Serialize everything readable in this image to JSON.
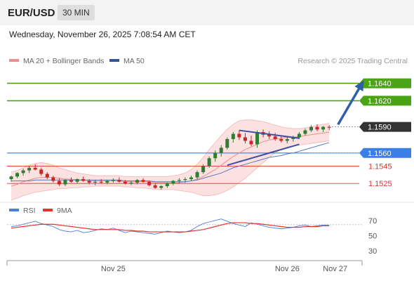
{
  "header": {
    "symbol": "EUR/USD",
    "timeframe": "30 MIN",
    "datetime": "Wednesday, November 26, 2025 7:08:54 AM CET"
  },
  "legend": {
    "items": [
      {
        "label": "MA 20 + Bollinger Bands",
        "color": "#f08c8c"
      },
      {
        "label": "MA 50",
        "color": "#2f5597"
      }
    ],
    "credit": "Research © 2025 Trading Central"
  },
  "rsi_legend": {
    "items": [
      {
        "label": "RSI",
        "color": "#4a7fd6"
      },
      {
        "label": "9MA",
        "color": "#e8312a"
      }
    ]
  },
  "colors": {
    "green_level": "#4ba316",
    "blue_level": "#3a7ee8",
    "red_level": "#e8312a",
    "current_price": "#333333",
    "arrow": "#2f5fa8",
    "candle_up": "#2e7d32",
    "candle_down": "#c62828"
  },
  "chart_data": [
    {
      "type": "line",
      "title": "",
      "price_levels": [
        {
          "value": 1.164,
          "label": "1.1640",
          "kind": "resistance",
          "color": "#4ba316"
        },
        {
          "value": 1.162,
          "label": "1.1620",
          "kind": "resistance",
          "color": "#4ba316"
        },
        {
          "value": 1.159,
          "label": "1.1590",
          "kind": "current",
          "color": "#333333"
        },
        {
          "value": 1.156,
          "label": "1.1560",
          "kind": "pivot",
          "color": "#3a7ee8"
        },
        {
          "value": 1.1545,
          "label": "1.1545",
          "kind": "support",
          "color": "#e8312a"
        },
        {
          "value": 1.1525,
          "label": "1.1525",
          "kind": "support",
          "color": "#e8312a"
        }
      ],
      "ylim": [
        1.1505,
        1.1655
      ],
      "x_ticks": [
        {
          "label": "Nov 25",
          "index": 17
        },
        {
          "label": "Nov 26",
          "index": 46
        },
        {
          "label": "Nov 27",
          "index": 54
        }
      ],
      "candles": [
        [
          1.153,
          1.1534,
          1.1527,
          1.1533
        ],
        [
          1.1533,
          1.1538,
          1.1531,
          1.1537
        ],
        [
          1.1537,
          1.1542,
          1.1534,
          1.154
        ],
        [
          1.154,
          1.1545,
          1.1537,
          1.1543
        ],
        [
          1.1543,
          1.1547,
          1.154,
          1.1541
        ],
        [
          1.1541,
          1.1543,
          1.1534,
          1.1536
        ],
        [
          1.1536,
          1.1538,
          1.153,
          1.1532
        ],
        [
          1.1532,
          1.1534,
          1.1526,
          1.1528
        ],
        [
          1.1528,
          1.1531,
          1.1522,
          1.1524
        ],
        [
          1.1524,
          1.153,
          1.1522,
          1.1529
        ],
        [
          1.1529,
          1.1532,
          1.1526,
          1.1527
        ],
        [
          1.1527,
          1.1531,
          1.1525,
          1.153
        ],
        [
          1.153,
          1.1533,
          1.1527,
          1.1528
        ],
        [
          1.1528,
          1.153,
          1.1524,
          1.1526
        ],
        [
          1.1526,
          1.1529,
          1.1523,
          1.1527
        ],
        [
          1.1527,
          1.153,
          1.1525,
          1.1526
        ],
        [
          1.1526,
          1.1529,
          1.1524,
          1.1528
        ],
        [
          1.1528,
          1.1531,
          1.1526,
          1.1529
        ],
        [
          1.1529,
          1.1532,
          1.1526,
          1.1527
        ],
        [
          1.1527,
          1.1529,
          1.1524,
          1.1525
        ],
        [
          1.1525,
          1.1528,
          1.1523,
          1.1526
        ],
        [
          1.1526,
          1.153,
          1.1524,
          1.1529
        ],
        [
          1.1529,
          1.1531,
          1.1526,
          1.1527
        ],
        [
          1.1527,
          1.1528,
          1.1522,
          1.1523
        ],
        [
          1.1523,
          1.1525,
          1.1519,
          1.152
        ],
        [
          1.152,
          1.1523,
          1.1518,
          1.1522
        ],
        [
          1.1522,
          1.1526,
          1.152,
          1.1525
        ],
        [
          1.1525,
          1.1529,
          1.1523,
          1.1528
        ],
        [
          1.1528,
          1.1531,
          1.1525,
          1.1529
        ],
        [
          1.1529,
          1.1532,
          1.1526,
          1.153
        ],
        [
          1.153,
          1.1534,
          1.1528,
          1.1532
        ],
        [
          1.1532,
          1.154,
          1.153,
          1.1538
        ],
        [
          1.1538,
          1.1547,
          1.1536,
          1.1545
        ],
        [
          1.1545,
          1.1556,
          1.1543,
          1.1554
        ],
        [
          1.1554,
          1.1563,
          1.155,
          1.156
        ],
        [
          1.156,
          1.1569,
          1.1556,
          1.1566
        ],
        [
          1.1566,
          1.1578,
          1.1564,
          1.1576
        ],
        [
          1.1576,
          1.1584,
          1.1572,
          1.1582
        ],
        [
          1.1582,
          1.1586,
          1.1575,
          1.1578
        ],
        [
          1.1578,
          1.1583,
          1.1571,
          1.1574
        ],
        [
          1.1574,
          1.158,
          1.1568,
          1.157
        ],
        [
          1.157,
          1.1586,
          1.1566,
          1.1584
        ],
        [
          1.1584,
          1.1587,
          1.1578,
          1.1581
        ],
        [
          1.1581,
          1.1585,
          1.1576,
          1.1579
        ],
        [
          1.1579,
          1.1583,
          1.1574,
          1.1576
        ],
        [
          1.1576,
          1.158,
          1.1572,
          1.1574
        ],
        [
          1.1574,
          1.1578,
          1.1571,
          1.1576
        ],
        [
          1.1576,
          1.158,
          1.1573,
          1.1578
        ],
        [
          1.1578,
          1.1584,
          1.1576,
          1.1582
        ],
        [
          1.1582,
          1.1588,
          1.158,
          1.1586
        ],
        [
          1.1586,
          1.1592,
          1.1584,
          1.159
        ],
        [
          1.159,
          1.1593,
          1.1585,
          1.1587
        ],
        [
          1.1587,
          1.1591,
          1.1584,
          1.159
        ],
        [
          1.159,
          1.1592,
          1.1586,
          1.1589
        ]
      ],
      "ma50": [
        1.1528,
        1.1528,
        1.1528,
        1.1528,
        1.1529,
        1.1529,
        1.1529,
        1.1529,
        1.1529,
        1.1529,
        1.1529,
        1.1529,
        1.1529,
        1.1529,
        1.1529,
        1.1529,
        1.1529,
        1.1529,
        1.1529,
        1.1528,
        1.1528,
        1.1528,
        1.1528,
        1.1528,
        1.1527,
        1.1527,
        1.1527,
        1.1527,
        1.1527,
        1.1527,
        1.1528,
        1.1529,
        1.1531,
        1.1533,
        1.1535,
        1.1537,
        1.154,
        1.1543,
        1.1545,
        1.1547,
        1.1549,
        1.1551,
        1.1553,
        1.1555,
        1.1556,
        1.1557,
        1.1559,
        1.156,
        1.1562,
        1.1564,
        1.1566,
        1.1568,
        1.157,
        1.1572
      ],
      "ma20": [
        1.1522,
        1.1524,
        1.1527,
        1.1529,
        1.1531,
        1.1532,
        1.1532,
        1.1532,
        1.1531,
        1.153,
        1.153,
        1.1529,
        1.1529,
        1.1528,
        1.1528,
        1.1528,
        1.1528,
        1.1528,
        1.1528,
        1.1527,
        1.1527,
        1.1527,
        1.1527,
        1.1527,
        1.1526,
        1.1526,
        1.1526,
        1.1526,
        1.1526,
        1.1527,
        1.1528,
        1.153,
        1.1533,
        1.1537,
        1.1541,
        1.1546,
        1.1551,
        1.1556,
        1.156,
        1.1564,
        1.1567,
        1.157,
        1.1573,
        1.1575,
        1.1576,
        1.1577,
        1.1578,
        1.1578,
        1.1579,
        1.158,
        1.1581,
        1.1582,
        1.1583,
        1.1584
      ],
      "bb_upper": [
        1.1538,
        1.154,
        1.1543,
        1.1546,
        1.1548,
        1.1549,
        1.1548,
        1.1546,
        1.1543,
        1.1541,
        1.1539,
        1.1537,
        1.1536,
        1.1535,
        1.1534,
        1.1534,
        1.1534,
        1.1534,
        1.1534,
        1.1533,
        1.1533,
        1.1533,
        1.1533,
        1.1533,
        1.1533,
        1.1533,
        1.1533,
        1.1534,
        1.1535,
        1.1537,
        1.1541,
        1.1547,
        1.1555,
        1.1564,
        1.1572,
        1.158,
        1.1587,
        1.1593,
        1.1597,
        1.1598,
        1.1598,
        1.1597,
        1.1596,
        1.1594,
        1.1592,
        1.159,
        1.1589,
        1.1588,
        1.1588,
        1.1589,
        1.159,
        1.1592,
        1.1593,
        1.1594
      ],
      "bb_lower": [
        1.1506,
        1.1508,
        1.1511,
        1.1513,
        1.1515,
        1.1516,
        1.1517,
        1.1518,
        1.1519,
        1.1519,
        1.152,
        1.152,
        1.1521,
        1.1521,
        1.1522,
        1.1522,
        1.1522,
        1.1522,
        1.1522,
        1.1521,
        1.1521,
        1.152,
        1.152,
        1.1519,
        1.1518,
        1.1518,
        1.1518,
        1.1518,
        1.1517,
        1.1516,
        1.1515,
        1.1513,
        1.1511,
        1.1511,
        1.1512,
        1.1514,
        1.1517,
        1.1521,
        1.1526,
        1.1531,
        1.1537,
        1.1543,
        1.1549,
        1.1555,
        1.156,
        1.1564,
        1.1567,
        1.1568,
        1.1569,
        1.157,
        1.1571,
        1.1572,
        1.1573,
        1.1574
      ],
      "trendlines": [
        {
          "from": [
            38,
            1.1586
          ],
          "to": [
            48,
            1.1577
          ]
        },
        {
          "from": [
            36,
            1.1546
          ],
          "to": [
            48,
            1.157
          ]
        }
      ],
      "projection": {
        "from": [
          54,
          1.1591
        ],
        "to": [
          59,
          1.1641
        ]
      }
    },
    {
      "type": "line",
      "title": "",
      "ylim": [
        20,
        80
      ],
      "y_ticks": [
        70,
        50,
        30
      ],
      "series": [
        {
          "name": "RSI",
          "color": "#4a7fd6",
          "values": [
            62,
            63,
            65,
            67,
            69,
            66,
            64,
            62,
            58,
            56,
            55,
            57,
            54,
            55,
            57,
            59,
            58,
            60,
            57,
            54,
            56,
            55,
            54,
            53,
            52,
            54,
            56,
            55,
            54,
            55,
            57,
            62,
            66,
            68,
            70,
            72,
            69,
            66,
            64,
            62,
            67,
            65,
            63,
            61,
            60,
            59,
            60,
            61,
            63,
            64,
            62,
            63,
            64,
            64
          ]
        },
        {
          "name": "9MA",
          "color": "#e8312a",
          "values": [
            60,
            61,
            62,
            63,
            64,
            65,
            65,
            65,
            64,
            63,
            62,
            61,
            60,
            59,
            58,
            58,
            58,
            58,
            58,
            57,
            57,
            56,
            56,
            55,
            55,
            55,
            55,
            55,
            55,
            55,
            56,
            57,
            58,
            60,
            62,
            64,
            66,
            67,
            67,
            67,
            66,
            66,
            65,
            64,
            63,
            62,
            61,
            61,
            61,
            62,
            62,
            62,
            63,
            63
          ]
        }
      ]
    }
  ]
}
